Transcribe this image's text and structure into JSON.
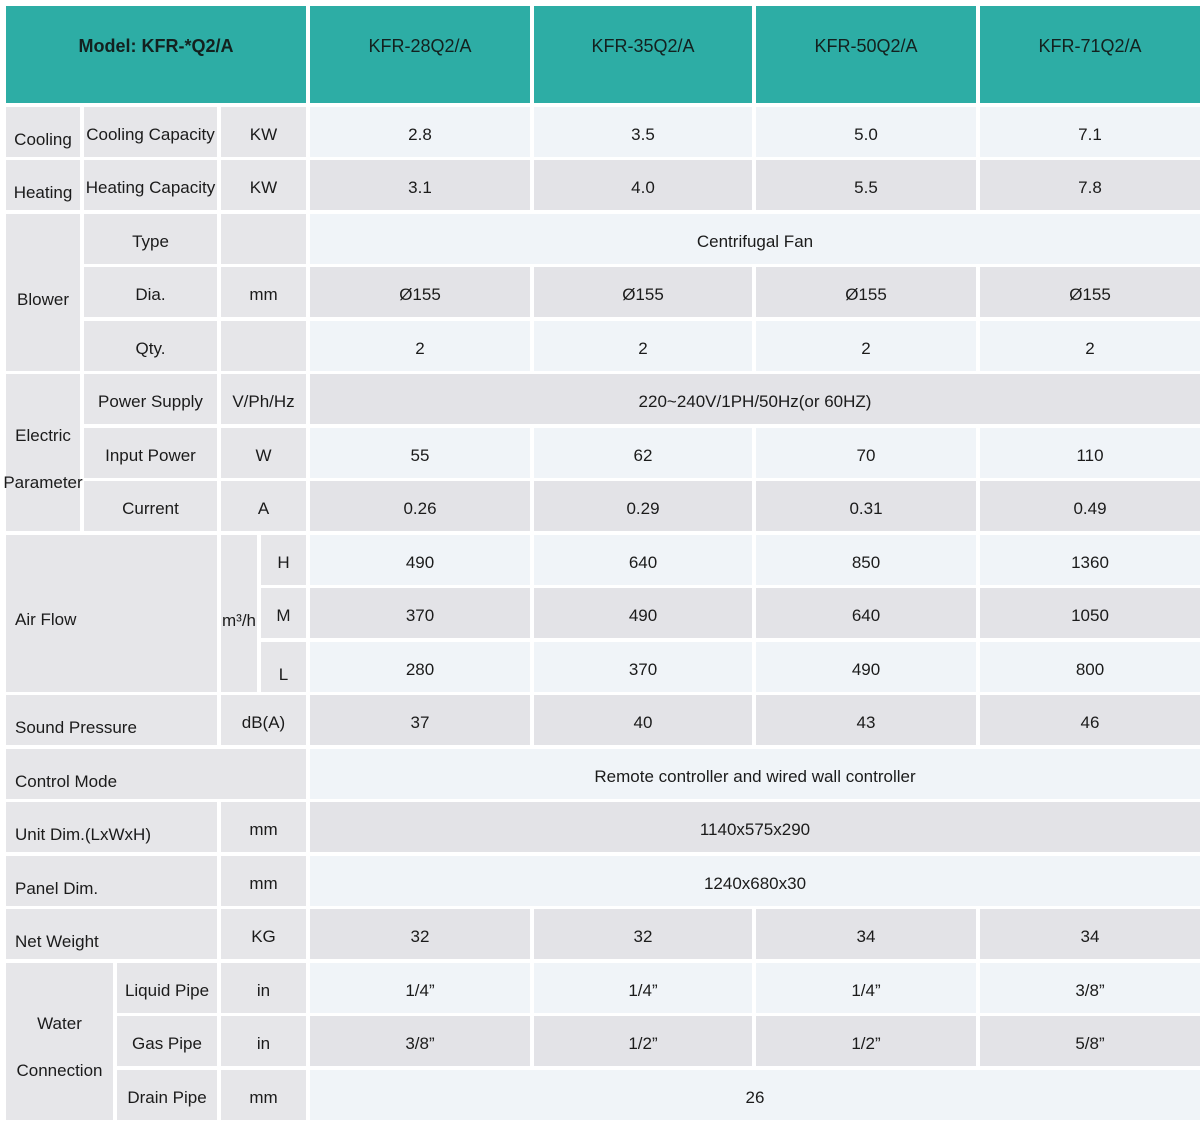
{
  "header": {
    "model_label": "Model: KFR-*Q2/A",
    "columns": [
      "KFR-28Q2/A",
      "KFR-35Q2/A",
      "KFR-50Q2/A",
      "KFR-71Q2/A"
    ]
  },
  "colors": {
    "header_teal": "#2dada5",
    "row_light_blue": "#f0f4f8",
    "row_gray": "#e3e3e7",
    "label_gray": "#e6e6e9",
    "text": "#1b1b1b",
    "gap_white": "#ffffff"
  },
  "sections": {
    "cooling": {
      "group": "Cooling",
      "label": "Cooling Capacity",
      "unit": "KW",
      "values": [
        "2.8",
        "3.5",
        "5.0",
        "7.1"
      ]
    },
    "heating": {
      "group": "Heating",
      "label": "Heating Capacity",
      "unit": "KW",
      "values": [
        "3.1",
        "4.0",
        "5.5",
        "7.8"
      ]
    },
    "blower": {
      "group": "Blower",
      "type_row": {
        "label": "Type",
        "unit": "",
        "merged": "Centrifugal Fan"
      },
      "dia_row": {
        "label": "Dia.",
        "unit": "mm",
        "values": [
          "Ø155",
          "Ø155",
          "Ø155",
          "Ø155"
        ]
      },
      "qty_row": {
        "label": "Qty.",
        "unit": "",
        "values": [
          "2",
          "2",
          "2",
          "2"
        ]
      }
    },
    "electric": {
      "group_line1": "Electric",
      "group_line2": "Parameter",
      "power_row": {
        "label": "Power Supply",
        "unit": "V/Ph/Hz",
        "merged": "220~240V/1PH/50Hz(or 60HZ)"
      },
      "input_row": {
        "label": "Input Power",
        "unit": "W",
        "values": [
          "55",
          "62",
          "70",
          "110"
        ]
      },
      "current_row": {
        "label": "Current",
        "unit": "A",
        "values": [
          "0.26",
          "0.29",
          "0.31",
          "0.49"
        ]
      }
    },
    "airflow": {
      "label": "Air Flow",
      "unit": "m³/h",
      "h_row": {
        "level": "H",
        "values": [
          "490",
          "640",
          "850",
          "1360"
        ]
      },
      "m_row": {
        "level": "M",
        "values": [
          "370",
          "490",
          "640",
          "1050"
        ]
      },
      "l_row": {
        "level": "L",
        "values": [
          "280",
          "370",
          "490",
          "800"
        ]
      }
    },
    "sound": {
      "label": "Sound Pressure",
      "unit": "dB(A)",
      "values": [
        "37",
        "40",
        "43",
        "46"
      ]
    },
    "control": {
      "label": "Control Mode",
      "merged": "Remote controller and wired wall controller"
    },
    "unit_dim": {
      "label": "Unit Dim.(LxWxH)",
      "unit": "mm",
      "merged": "1140x575x290"
    },
    "panel_dim": {
      "label": "Panel Dim.",
      "unit": "mm",
      "merged": "1240x680x30"
    },
    "net_weight": {
      "label": "Net Weight",
      "unit": "KG",
      "values": [
        "32",
        "32",
        "34",
        "34"
      ]
    },
    "water": {
      "group_line1": "Water",
      "group_line2": "Connection",
      "liquid_row": {
        "label": "Liquid Pipe",
        "unit": "in",
        "values": [
          "1/4”",
          "1/4”",
          "1/4”",
          "3/8”"
        ]
      },
      "gas_row": {
        "label": "Gas Pipe",
        "unit": "in",
        "values": [
          "3/8”",
          "1/2”",
          "1/2”",
          "5/8”"
        ]
      },
      "drain_row": {
        "label": "Drain Pipe",
        "unit": "mm",
        "merged": "26"
      }
    }
  }
}
